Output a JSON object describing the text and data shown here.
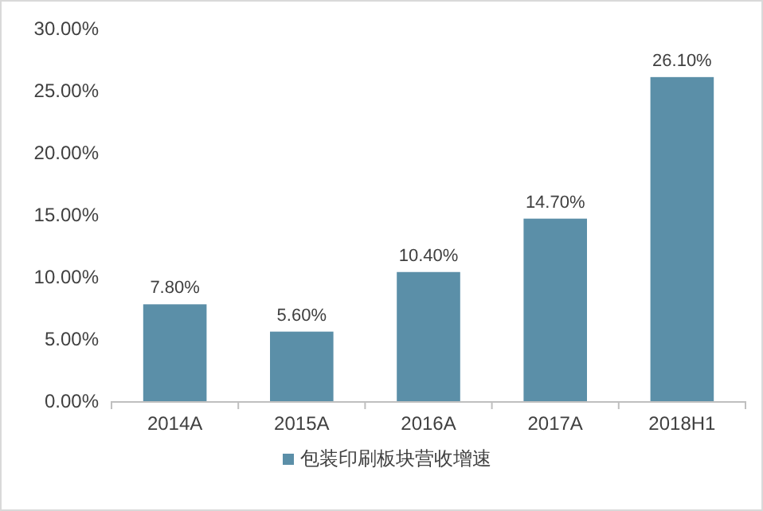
{
  "chart_data": {
    "type": "bar",
    "categories": [
      "2014A",
      "2015A",
      "2016A",
      "2017A",
      "2018H1"
    ],
    "series": [
      {
        "name": "包装印刷板块营收增速",
        "color": "#5b8fa8",
        "values": [
          7.8,
          5.6,
          10.4,
          14.7,
          26.1
        ],
        "value_labels": [
          "7.80%",
          "5.60%",
          "10.40%",
          "14.70%",
          "26.10%"
        ]
      }
    ],
    "ylim": [
      0,
      30
    ],
    "yticks": [
      {
        "value": 0,
        "label": "0.00%"
      },
      {
        "value": 5,
        "label": "5.00%"
      },
      {
        "value": 10,
        "label": "10.00%"
      },
      {
        "value": 15,
        "label": "15.00%"
      },
      {
        "value": 20,
        "label": "20.00%"
      },
      {
        "value": 25,
        "label": "25.00%"
      },
      {
        "value": 30,
        "label": "30.00%"
      }
    ],
    "legend": "bottom"
  }
}
